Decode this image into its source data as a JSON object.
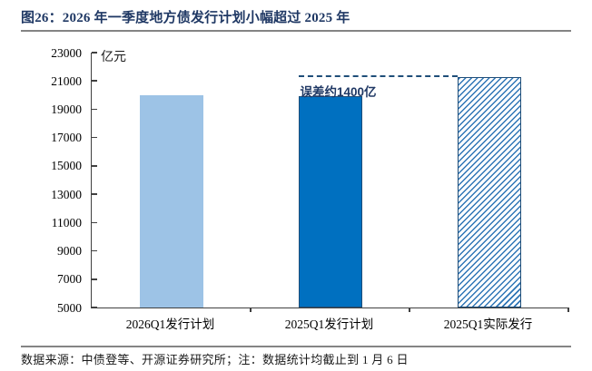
{
  "title": "图26：2026 年一季度地方债发行计划小幅超过 2025 年",
  "footer": "数据来源：中债登等、开源证券研究所；注：数据统计均截止到 1 月 6 日",
  "chart_data": {
    "type": "bar",
    "title": "2026 年一季度地方债发行计划小幅超过 2025 年",
    "ylabel": "亿元",
    "xlabel": "",
    "categories": [
      "2026Q1发行计划",
      "2025Q1发行计划",
      "2025Q1实际发行"
    ],
    "values": [
      20000,
      19900,
      21300
    ],
    "ylim": [
      5000,
      23000
    ],
    "ytick_step": 2000,
    "yticks": [
      5000,
      7000,
      9000,
      11000,
      13000,
      15000,
      17000,
      19000,
      21000,
      23000
    ],
    "grid": false,
    "legend": "none",
    "bar_styles": [
      "solid_light",
      "solid_dark",
      "hatched"
    ],
    "annotation": "误差约1400亿",
    "reference_line": {
      "value": 21300,
      "style": "dashed",
      "span": "from 2025Q1发行计划 to 2025Q1实际发行"
    },
    "colors": {
      "title": "#1F3864",
      "bar_light": "#9DC3E6",
      "bar_dark": "#0070C0",
      "bar_border": "#1F4E79",
      "hatch_line": "#2E75B6",
      "hatch_bg": "#FFFFFF",
      "dashed_line": "#1F4E79",
      "annotation": "#1F3864",
      "axis": "#404040",
      "rule_gray": "#848484"
    }
  }
}
